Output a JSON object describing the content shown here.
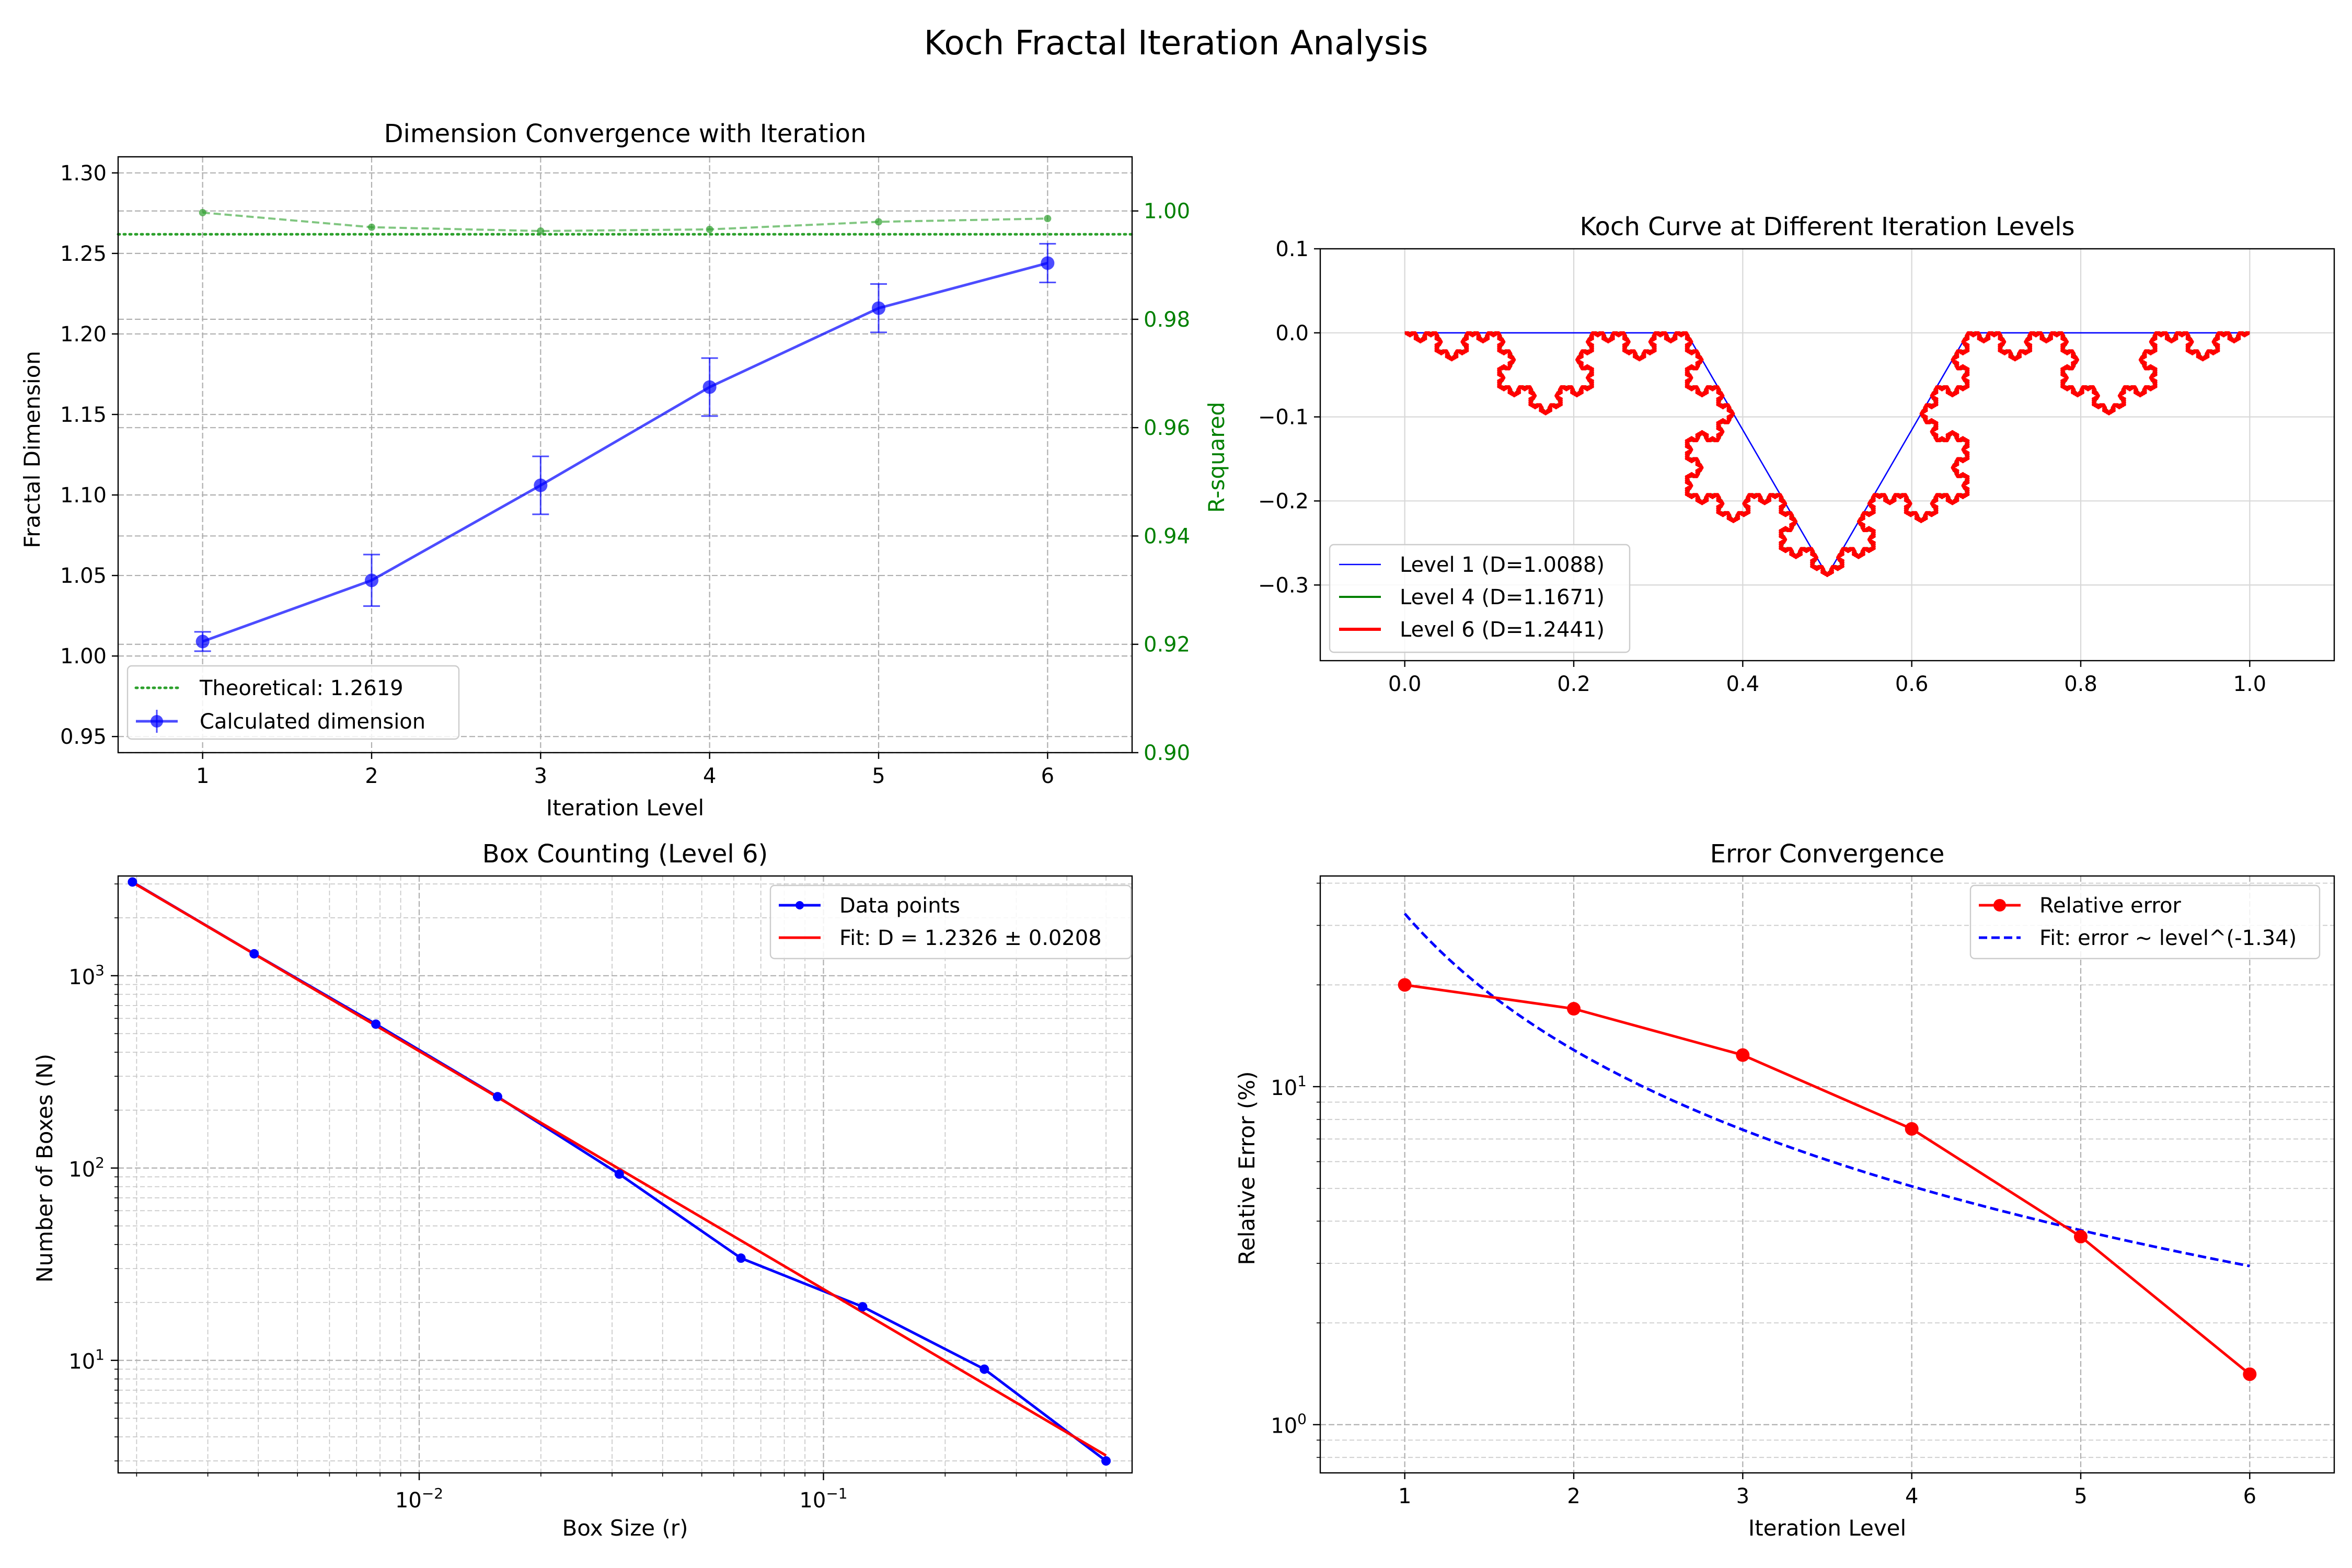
{
  "figure_title": "Koch Fractal Iteration Analysis",
  "colors": {
    "blue": "#0000ff",
    "red": "#ff0000",
    "green": "#008000",
    "theory_green": "#2ca02c"
  },
  "chart_data": [
    {
      "id": "dimension_convergence",
      "type": "line",
      "title": "Dimension Convergence with Iteration",
      "xlabel": "Iteration Level",
      "ylabel": "Fractal Dimension",
      "ylabel_right": "R-squared",
      "xlim": [
        0.5,
        6.5
      ],
      "ylim": [
        0.94,
        1.31
      ],
      "ylim_right": [
        0.9,
        1.01
      ],
      "xticks": [
        1,
        2,
        3,
        4,
        5,
        6
      ],
      "yticks": [
        0.95,
        1.0,
        1.05,
        1.1,
        1.15,
        1.2,
        1.25,
        1.3
      ],
      "yticks_right": [
        0.9,
        0.92,
        0.94,
        0.96,
        0.98,
        1.0
      ],
      "grid": true,
      "legend_position": "lower-left",
      "series": [
        {
          "name": "Calculated dimension",
          "x": [
            1,
            2,
            3,
            4,
            5,
            6
          ],
          "y": [
            1.009,
            1.047,
            1.106,
            1.167,
            1.216,
            1.244
          ],
          "yerr": [
            0.006,
            0.016,
            0.018,
            0.018,
            0.015,
            0.012
          ],
          "color": "#0000ff"
        },
        {
          "name": "",
          "axis": "right",
          "x": [
            1,
            2,
            3,
            4,
            5,
            6
          ],
          "y": [
            0.9997,
            0.997,
            0.9963,
            0.9966,
            0.998,
            0.9986
          ],
          "color": "#2ca02c"
        }
      ],
      "reference_line": {
        "name": "Theoretical: 1.2619",
        "y": 1.2619,
        "color": "#2ca02c"
      }
    },
    {
      "id": "koch_curve",
      "type": "line",
      "title": "Koch Curve at Different Iteration Levels",
      "xlim": [
        -0.1,
        1.1
      ],
      "ylim": [
        -0.39,
        0.1
      ],
      "xticks": [
        0.0,
        0.2,
        0.4,
        0.6,
        0.8,
        1.0
      ],
      "yticks": [
        0.1,
        0.0,
        -0.1,
        -0.2,
        -0.3
      ],
      "grid": true,
      "legend_position": "lower-left",
      "series": [
        {
          "name": "Level 1 (D=1.0088)",
          "level": 1,
          "color": "#0000ff"
        },
        {
          "name": "Level 4 (D=1.1671)",
          "level": 4,
          "color": "#008000"
        },
        {
          "name": "Level 6 (D=1.2441)",
          "level": 6,
          "color": "#ff0000"
        }
      ]
    },
    {
      "id": "box_counting",
      "type": "line",
      "title": "Box Counting (Level 6)",
      "xlabel": "Box Size (r)",
      "ylabel": "Number of Boxes (N)",
      "xscale": "log",
      "yscale": "log",
      "xlim": [
        0.0018,
        0.58
      ],
      "ylim": [
        2.6,
        3300
      ],
      "xtick_labels": [
        "10^-2",
        "10^-1"
      ],
      "ytick_labels": [
        "10^1",
        "10^2",
        "10^3"
      ],
      "grid": true,
      "legend_position": "top-right",
      "series": [
        {
          "name": "Data points",
          "x": [
            0.001953,
            0.003906,
            0.007813,
            0.015625,
            0.03125,
            0.0625,
            0.125,
            0.25,
            0.5
          ],
          "y": [
            3072,
            1300,
            560,
            235,
            93,
            34,
            19,
            9,
            3
          ],
          "color": "#0000ff"
        },
        {
          "name": "Fit: D = 1.2326 ± 0.0208",
          "x": [
            0.001953,
            0.5
          ],
          "y": [
            3060,
            3.2
          ],
          "color": "#ff0000"
        }
      ]
    },
    {
      "id": "error_convergence",
      "type": "line",
      "title": "Error Convergence",
      "xlabel": "Iteration Level",
      "ylabel": "Relative Error (%)",
      "yscale": "log",
      "xlim": [
        0.5,
        6.5
      ],
      "ylim": [
        0.72,
        42
      ],
      "xticks": [
        1,
        2,
        3,
        4,
        5,
        6
      ],
      "ytick_labels": [
        "10^0",
        "10^1"
      ],
      "grid": true,
      "legend_position": "top-right",
      "series": [
        {
          "name": "Relative error",
          "x": [
            1,
            2,
            3,
            4,
            5,
            6
          ],
          "y": [
            20.0,
            17.0,
            12.4,
            7.5,
            3.6,
            1.41
          ],
          "color": "#ff0000"
        },
        {
          "name": "Fit: error ~ level^(-1.34)",
          "amplitude": 32.5,
          "exponent": -1.34,
          "x_range": [
            1,
            6
          ],
          "color": "#0000ff",
          "dashed": true
        }
      ]
    }
  ]
}
